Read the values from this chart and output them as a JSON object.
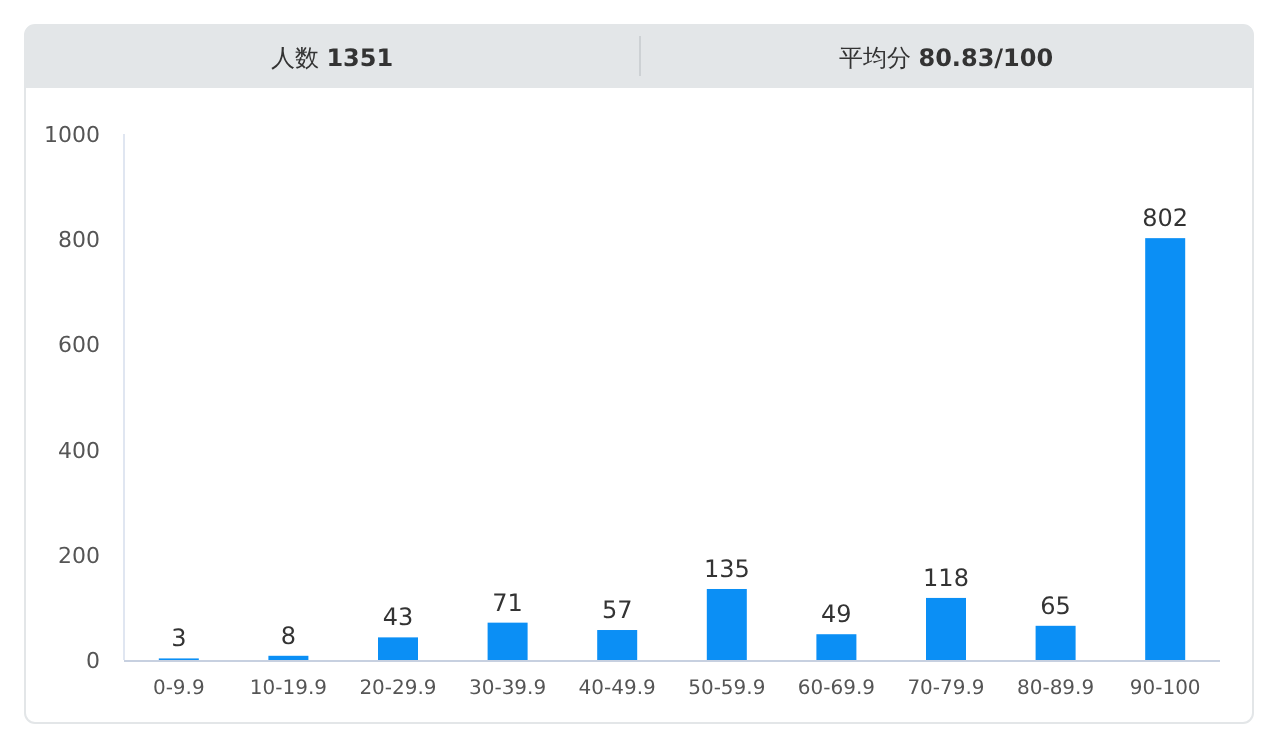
{
  "chart_data": {
    "type": "bar",
    "annotations": [
      "人数 1351",
      "平均分 80.83/100"
    ],
    "categories": [
      "0-9.9",
      "10-19.9",
      "20-29.9",
      "30-39.9",
      "40-49.9",
      "50-59.9",
      "60-69.9",
      "70-79.9",
      "80-89.9",
      "90-100"
    ],
    "values": [
      3,
      8,
      43,
      71,
      57,
      135,
      49,
      118,
      65,
      802
    ],
    "color": "#0b8ff5",
    "ylim": [
      0,
      1000
    ],
    "yticks": [
      0,
      200,
      400,
      600,
      800,
      1000
    ],
    "data_labels": true,
    "grid": false
  }
}
